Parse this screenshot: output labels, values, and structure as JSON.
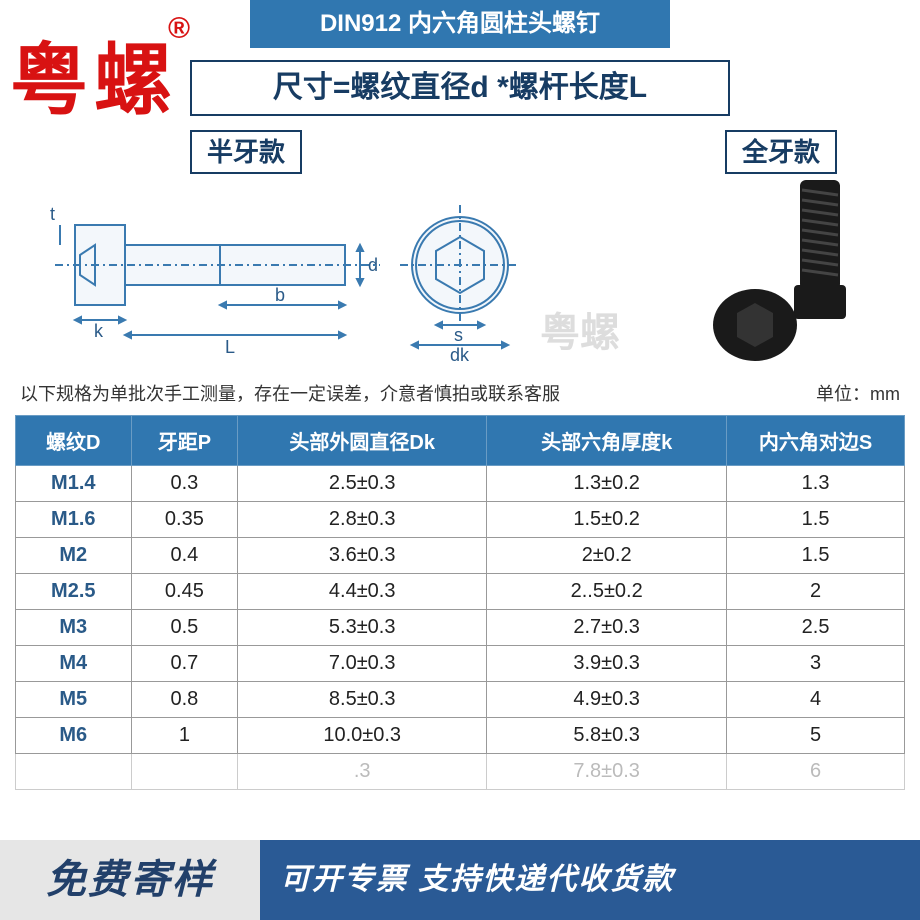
{
  "brand": "粤螺",
  "brand_mark": "®",
  "title": "DIN912 内六角圆柱头螺钉",
  "formula": "尺寸=螺纹直径d *螺杆长度L",
  "variant_left": "半牙款",
  "variant_right": "全牙款",
  "watermark": "粤螺",
  "note": "以下规格为单批次手工测量，存在一定误差，介意者慎拍或联系客服",
  "unit": "单位：mm",
  "table": {
    "columns": [
      "螺纹D",
      "牙距P",
      "头部外圆直径Dk",
      "头部六角厚度k",
      "内六角对边S"
    ],
    "col_widths": [
      "13%",
      "12%",
      "28%",
      "27%",
      "20%"
    ],
    "rows": [
      [
        "M1.4",
        "0.3",
        "2.5±0.3",
        "1.3±0.2",
        "1.3"
      ],
      [
        "M1.6",
        "0.35",
        "2.8±0.3",
        "1.5±0.2",
        "1.5"
      ],
      [
        "M2",
        "0.4",
        "3.6±0.3",
        "2±0.2",
        "1.5"
      ],
      [
        "M2.5",
        "0.45",
        "4.4±0.3",
        "2..5±0.2",
        "2"
      ],
      [
        "M3",
        "0.5",
        "5.3±0.3",
        "2.7±0.3",
        "2.5"
      ],
      [
        "M4",
        "0.7",
        "7.0±0.3",
        "3.9±0.3",
        "3"
      ],
      [
        "M5",
        "0.8",
        "8.5±0.3",
        "4.9±0.3",
        "4"
      ],
      [
        "M6",
        "1",
        "10.0±0.3",
        "5.8±0.3",
        "5"
      ],
      [
        "",
        "",
        "   .3",
        "7.8±0.3",
        "6"
      ]
    ]
  },
  "diagram": {
    "labels": {
      "t": "t",
      "k": "k",
      "L": "L",
      "b": "b",
      "d": "d",
      "s": "s",
      "dk": "dk"
    },
    "stroke": "#3a7ab0",
    "text_color": "#2a5a88"
  },
  "bolt_photo": {
    "color": "#1a1a1a"
  },
  "banner": {
    "left": "免费寄样",
    "right": "可开专票 支持快递代收货款"
  },
  "colors": {
    "header_bg": "#3077b0",
    "header_fg": "#ffffff",
    "accent": "#173c63",
    "brand": "#d81212",
    "banner_bg": "#2a5a95"
  }
}
